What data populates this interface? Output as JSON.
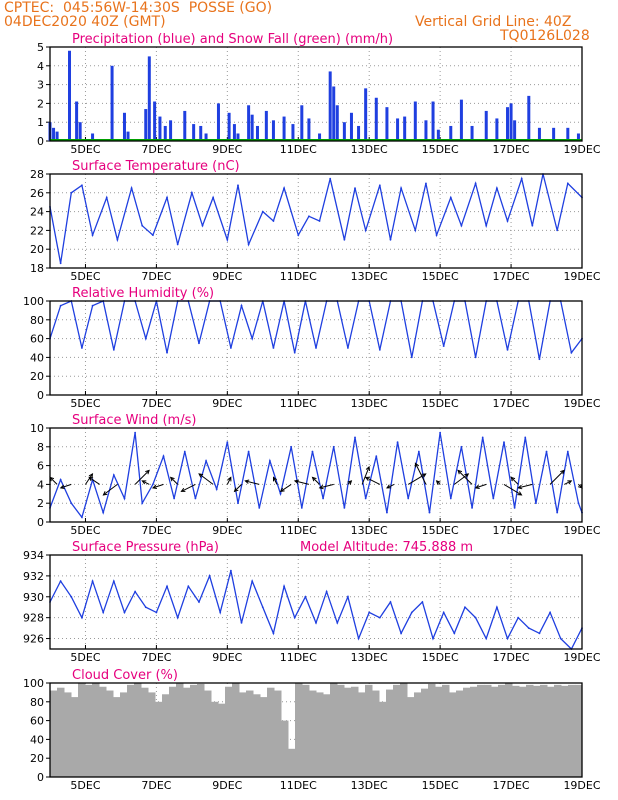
{
  "header": {
    "line1_left": "CPTEC:  045:56W-14:30S  POSSE (GO)",
    "line2_left": "04DEC2020 40Z (GMT)",
    "line1_right": "Vertical Grid Line: 40Z",
    "line2_right": "TQ0126L028"
  },
  "colors": {
    "header": "#e8731c",
    "title": "#e6007e",
    "series": "#1f3fe0",
    "snow": "#00a000",
    "cloud": "#a9a9a9",
    "grid": "#9a9a9a"
  },
  "x_ticks": [
    "5DEC",
    "7DEC",
    "9DEC",
    "11DEC",
    "13DEC",
    "15DEC",
    "17DEC",
    "19DEC"
  ],
  "chart_data": [
    {
      "type": "bar",
      "title": "Precipitation (blue) and Snow Fall (green) (mm/h)",
      "ylim": [
        0,
        5
      ],
      "yticks": [
        0,
        1,
        2,
        3,
        4,
        5
      ],
      "grid": true,
      "x_days": [
        4.0,
        4.1,
        4.2,
        4.55,
        4.75,
        4.85,
        5.2,
        5.75,
        6.1,
        6.2,
        6.7,
        6.8,
        6.95,
        7.1,
        7.25,
        7.4,
        7.8,
        8.05,
        8.25,
        8.4,
        8.75,
        9.05,
        9.2,
        9.3,
        9.6,
        9.7,
        9.85,
        10.1,
        10.3,
        10.6,
        10.85,
        11.1,
        11.3,
        11.6,
        11.9,
        12.0,
        12.1,
        12.3,
        12.5,
        12.7,
        12.9,
        13.2,
        13.5,
        13.8,
        14.0,
        14.3,
        14.6,
        14.8,
        14.95,
        15.3,
        15.6,
        15.9,
        16.3,
        16.6,
        16.9,
        17.0,
        17.1,
        17.5,
        17.8,
        18.2,
        18.6,
        18.9
      ],
      "values": [
        1.0,
        0.7,
        0.5,
        4.8,
        2.1,
        1.0,
        0.4,
        4.0,
        1.5,
        0.5,
        1.7,
        4.5,
        2.1,
        1.3,
        0.8,
        1.1,
        1.6,
        0.9,
        0.8,
        0.4,
        2.0,
        1.5,
        0.9,
        0.4,
        1.9,
        1.4,
        0.8,
        1.6,
        1.1,
        1.3,
        0.9,
        1.9,
        1.2,
        0.4,
        3.7,
        2.9,
        1.9,
        1.0,
        1.5,
        0.8,
        2.8,
        2.3,
        1.8,
        1.2,
        1.3,
        2.1,
        1.1,
        2.1,
        0.6,
        0.8,
        2.2,
        0.8,
        1.6,
        1.2,
        1.8,
        2.0,
        1.1,
        2.4,
        0.7,
        0.7,
        0.7,
        0.4
      ],
      "snow_values": [
        0,
        0,
        0,
        0,
        0,
        0,
        0,
        0,
        0,
        0,
        0,
        0,
        0,
        0,
        0,
        0,
        0,
        0,
        0,
        0,
        0,
        0,
        0,
        0,
        0,
        0,
        0,
        0,
        0,
        0,
        0,
        0,
        0,
        0,
        0,
        0,
        0,
        0,
        0,
        0,
        0,
        0,
        0,
        0,
        0,
        0,
        0,
        0,
        0,
        0,
        0,
        0,
        0,
        0,
        0,
        0,
        0,
        0,
        0,
        0,
        0,
        0
      ]
    },
    {
      "type": "line",
      "title": "Surface Temperature (nC)",
      "ylim": [
        18,
        28
      ],
      "yticks": [
        18,
        20,
        22,
        24,
        26,
        28
      ],
      "grid": true,
      "x_days": [
        4.0,
        4.3,
        4.6,
        4.9,
        5.2,
        5.6,
        5.9,
        6.3,
        6.6,
        6.9,
        7.3,
        7.6,
        8.0,
        8.3,
        8.6,
        9.0,
        9.3,
        9.6,
        10.0,
        10.3,
        10.6,
        11.0,
        11.3,
        11.6,
        11.9,
        12.3,
        12.6,
        12.9,
        13.3,
        13.6,
        13.9,
        14.3,
        14.6,
        14.9,
        15.3,
        15.6,
        16.0,
        16.3,
        16.6,
        16.9,
        17.3,
        17.6,
        17.9,
        18.3,
        18.6,
        19.0
      ],
      "values": [
        24.5,
        18.5,
        26.0,
        26.8,
        21.5,
        25.5,
        21.0,
        26.5,
        22.5,
        21.5,
        25.5,
        20.5,
        26.0,
        22.5,
        25.5,
        21.0,
        26.8,
        20.5,
        24.0,
        23.0,
        26.5,
        21.5,
        23.5,
        23.0,
        27.5,
        21.0,
        26.5,
        22.0,
        26.8,
        21.0,
        26.5,
        22.0,
        27.0,
        21.5,
        25.5,
        22.5,
        27.0,
        22.5,
        26.5,
        23.0,
        27.5,
        22.5,
        28.0,
        22.0,
        27.0,
        25.5
      ]
    },
    {
      "type": "line",
      "title": "Relative Humidity (%)",
      "ylim": [
        0,
        100
      ],
      "yticks": [
        0,
        20,
        40,
        60,
        80,
        100
      ],
      "grid": true,
      "x_days": [
        4.0,
        4.3,
        4.6,
        4.9,
        5.2,
        5.5,
        5.8,
        6.1,
        6.4,
        6.7,
        7.0,
        7.3,
        7.6,
        7.9,
        8.2,
        8.5,
        8.8,
        9.1,
        9.4,
        9.7,
        10.0,
        10.3,
        10.6,
        10.9,
        11.2,
        11.5,
        11.8,
        12.1,
        12.4,
        12.7,
        13.0,
        13.3,
        13.6,
        13.9,
        14.2,
        14.5,
        14.8,
        15.1,
        15.4,
        15.7,
        16.0,
        16.3,
        16.6,
        16.9,
        17.2,
        17.5,
        17.8,
        18.1,
        18.4,
        18.7,
        19.0
      ],
      "values": [
        60,
        95,
        100,
        50,
        95,
        100,
        48,
        100,
        100,
        60,
        100,
        45,
        100,
        100,
        55,
        100,
        100,
        50,
        95,
        60,
        100,
        50,
        100,
        45,
        100,
        50,
        100,
        100,
        50,
        100,
        100,
        48,
        100,
        100,
        40,
        100,
        100,
        52,
        100,
        100,
        40,
        100,
        100,
        48,
        100,
        100,
        38,
        100,
        100,
        45,
        60
      ]
    },
    {
      "type": "line",
      "title": "Surface Wind (m/s)",
      "ylim": [
        0,
        10
      ],
      "yticks": [
        0,
        2,
        4,
        6,
        8,
        10
      ],
      "grid": true,
      "x_days": [
        4.0,
        4.3,
        4.6,
        4.9,
        5.2,
        5.5,
        5.8,
        6.1,
        6.4,
        6.6,
        6.9,
        7.2,
        7.5,
        7.8,
        8.1,
        8.4,
        8.7,
        9.0,
        9.3,
        9.6,
        9.9,
        10.2,
        10.5,
        10.8,
        11.1,
        11.4,
        11.7,
        12.0,
        12.3,
        12.6,
        12.9,
        13.2,
        13.5,
        13.8,
        14.1,
        14.4,
        14.7,
        15.0,
        15.3,
        15.6,
        15.9,
        16.2,
        16.5,
        16.8,
        17.1,
        17.4,
        17.7,
        18.0,
        18.3,
        18.6,
        18.9,
        19.0
      ],
      "values": [
        1.5,
        4.5,
        2.0,
        0.5,
        4.5,
        1.0,
        5.0,
        2.5,
        9.5,
        2.0,
        4.0,
        7.0,
        2.5,
        7.5,
        2.5,
        6.5,
        3.5,
        8.5,
        2.0,
        7.5,
        1.5,
        6.5,
        3.0,
        8.0,
        1.5,
        7.5,
        2.5,
        8.0,
        1.5,
        9.0,
        2.5,
        7.0,
        1.0,
        8.5,
        2.5,
        7.5,
        1.0,
        9.5,
        2.5,
        8.0,
        1.5,
        9.0,
        2.5,
        8.5,
        1.5,
        9.0,
        2.0,
        7.5,
        1.0,
        7.5,
        2.0,
        1.0
      ],
      "arrows_x_days": [
        4.2,
        4.6,
        5.0,
        5.4,
        5.9,
        6.4,
        6.8,
        7.2,
        7.6,
        8.1,
        8.6,
        9.0,
        9.4,
        9.9,
        10.4,
        10.8,
        11.3,
        11.6,
        12.0,
        12.4,
        12.8,
        13.3,
        13.7,
        14.1,
        14.6,
        15.0,
        15.4,
        15.9,
        16.3,
        16.8,
        17.2,
        17.6,
        18.1,
        18.5,
        18.9
      ],
      "arrows_u": [
        -1.0,
        -1.5,
        1.0,
        -1.5,
        -2.0,
        2.0,
        -1.0,
        -1.5,
        -1.0,
        -2.0,
        -2.0,
        0.5,
        -1.0,
        -2.0,
        -0.5,
        -1.5,
        -2.0,
        -1.0,
        -2.0,
        0.5,
        1.0,
        -2.0,
        -1.0,
        2.5,
        -1.5,
        -0.5,
        2.0,
        -2.0,
        -1.5,
        2.5,
        -1.0,
        -2.0,
        2.0,
        1.0,
        0.5
      ],
      "arrows_v": [
        1.0,
        -0.5,
        1.5,
        1.0,
        -1.5,
        2.0,
        0.5,
        -0.5,
        1.0,
        -1.0,
        1.5,
        1.0,
        -1.0,
        0.5,
        1.0,
        -1.0,
        0.5,
        1.0,
        -0.5,
        0.5,
        2.5,
        1.0,
        -0.5,
        1.5,
        3.0,
        0.5,
        1.5,
        2.0,
        -0.5,
        -1.5,
        1.0,
        -0.5,
        2.0,
        0.5,
        -0.5
      ]
    },
    {
      "type": "line",
      "title": "Surface Pressure (hPa)",
      "annotation": "Model Altitude: 745.888 m",
      "ylim": [
        925,
        934
      ],
      "yticks": [
        926,
        928,
        930,
        932,
        934
      ],
      "grid": true,
      "x_days": [
        4.0,
        4.3,
        4.6,
        4.9,
        5.2,
        5.5,
        5.8,
        6.1,
        6.4,
        6.7,
        7.0,
        7.3,
        7.6,
        7.9,
        8.2,
        8.5,
        8.8,
        9.1,
        9.4,
        9.7,
        10.0,
        10.3,
        10.6,
        10.9,
        11.2,
        11.5,
        11.8,
        12.1,
        12.4,
        12.7,
        13.0,
        13.3,
        13.6,
        13.9,
        14.2,
        14.5,
        14.8,
        15.1,
        15.4,
        15.7,
        16.0,
        16.3,
        16.6,
        16.9,
        17.2,
        17.5,
        17.8,
        18.1,
        18.4,
        18.7,
        19.0
      ],
      "values": [
        929.5,
        931.5,
        930.0,
        928.0,
        931.5,
        928.5,
        931.5,
        928.5,
        930.5,
        929.0,
        928.5,
        931.0,
        928.0,
        931.0,
        929.5,
        932.0,
        928.5,
        932.5,
        927.5,
        931.5,
        929.0,
        926.5,
        931.0,
        928.0,
        930.0,
        927.5,
        930.5,
        927.5,
        930.0,
        926.0,
        928.5,
        928.0,
        929.5,
        926.5,
        928.5,
        929.5,
        926.0,
        928.5,
        926.5,
        929.0,
        928.0,
        926.0,
        929.0,
        926.0,
        928.0,
        927.0,
        926.5,
        928.5,
        926.0,
        925.0,
        927.0
      ]
    },
    {
      "type": "bar",
      "title": "Cloud Cover (%)",
      "ylim": [
        0,
        100
      ],
      "yticks": [
        0,
        20,
        40,
        60,
        80,
        100
      ],
      "grid": true,
      "x_days": [
        4.0,
        4.2,
        4.4,
        4.6,
        4.8,
        5.0,
        5.2,
        5.4,
        5.6,
        5.8,
        6.0,
        6.2,
        6.4,
        6.6,
        6.8,
        7.0,
        7.2,
        7.4,
        7.6,
        7.8,
        8.0,
        8.2,
        8.4,
        8.6,
        8.8,
        9.0,
        9.2,
        9.4,
        9.6,
        9.8,
        10.0,
        10.2,
        10.4,
        10.6,
        10.8,
        11.0,
        11.2,
        11.4,
        11.6,
        11.8,
        12.0,
        12.2,
        12.4,
        12.6,
        12.8,
        13.0,
        13.2,
        13.4,
        13.6,
        13.8,
        14.0,
        14.2,
        14.4,
        14.6,
        14.8,
        15.0,
        15.2,
        15.4,
        15.6,
        15.8,
        16.0,
        16.2,
        16.4,
        16.6,
        16.8,
        17.0,
        17.2,
        17.4,
        17.6,
        17.8,
        18.0,
        18.2,
        18.4,
        18.6,
        18.8,
        19.0
      ],
      "values": [
        92,
        95,
        90,
        85,
        100,
        98,
        100,
        96,
        92,
        85,
        90,
        98,
        100,
        95,
        90,
        80,
        88,
        96,
        100,
        95,
        98,
        99,
        92,
        80,
        78,
        96,
        100,
        90,
        92,
        88,
        85,
        95,
        92,
        60,
        30,
        100,
        98,
        92,
        90,
        88,
        100,
        98,
        95,
        96,
        90,
        98,
        92,
        80,
        93,
        98,
        100,
        85,
        90,
        94,
        99,
        96,
        98,
        90,
        92,
        95,
        96,
        98,
        98,
        96,
        98,
        100,
        97,
        96,
        98,
        97,
        98,
        96,
        98,
        97,
        98,
        98
      ]
    }
  ]
}
